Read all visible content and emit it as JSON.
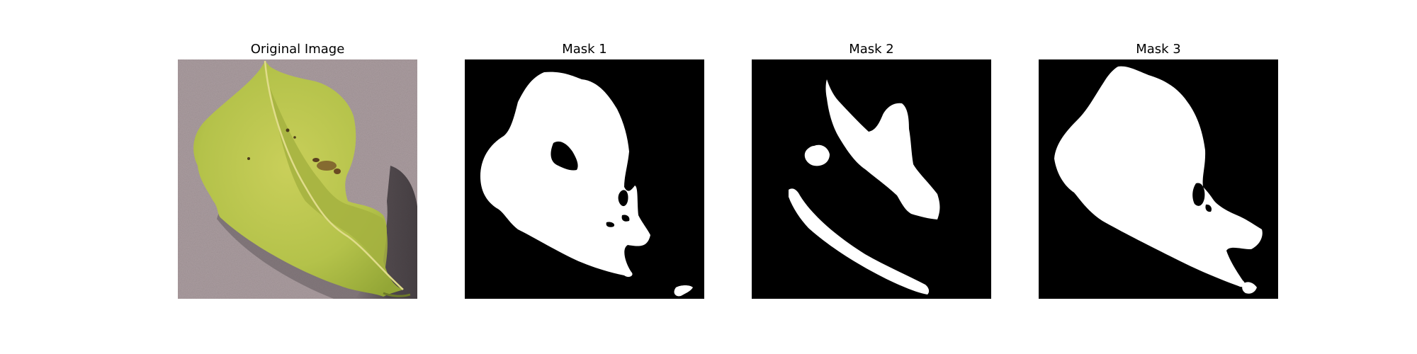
{
  "figure": {
    "panels": [
      {
        "title": "Original Image",
        "kind": "photo",
        "subject": "leaf-photo"
      },
      {
        "title": "Mask 1",
        "kind": "mask",
        "subject": "segmentation-mask"
      },
      {
        "title": "Mask 2",
        "kind": "mask",
        "subject": "segmentation-mask"
      },
      {
        "title": "Mask 3",
        "kind": "mask",
        "subject": "segmentation-mask"
      }
    ]
  },
  "colors": {
    "mask_background": "#000000",
    "mask_foreground": "#ffffff",
    "ground": "#aa9c9f",
    "leaf": "#b7c44b",
    "leaf_dark": "#8ea233",
    "shadow": "#3a3438"
  }
}
